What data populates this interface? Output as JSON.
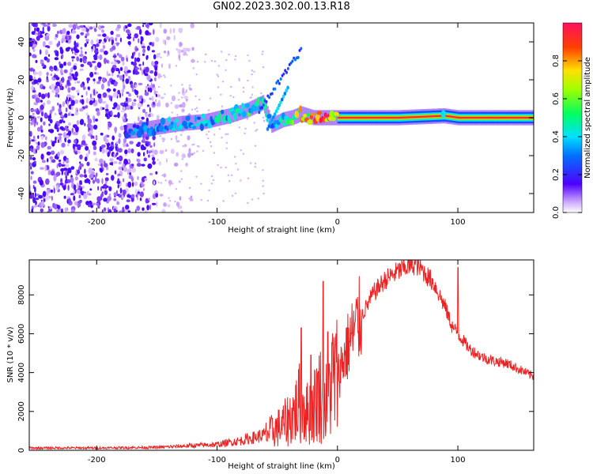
{
  "title": "GN02.2023.302.00.13.R18",
  "chart_data": [
    {
      "type": "heatmap",
      "xlabel": "Height of straight line (km)",
      "ylabel": "Frequency (Hz)",
      "xlim": [
        -256,
        163
      ],
      "ylim": [
        -50,
        50
      ],
      "xticks": [
        -200,
        -100,
        0,
        100
      ],
      "yticks": [
        -40,
        -20,
        0,
        20,
        40
      ],
      "grid": false,
      "colorbar": {
        "label": "Normalized spectral amplitude",
        "range": [
          0,
          1
        ],
        "ticks": [
          0.0,
          0.2,
          0.4,
          0.6,
          0.8
        ],
        "tick_labels": [
          "0.0",
          "0.2",
          "0.4",
          "0.6",
          "0.8"
        ],
        "colormap": [
          "#ffffff",
          "#b46cff",
          "#4b00ff",
          "#0040ff",
          "#00e0ff",
          "#00ff40",
          "#a0ff00",
          "#ffe000",
          "#ff4000",
          "#ff1060"
        ]
      },
      "ridge": {
        "x": [
          -170,
          -150,
          -130,
          -110,
          -90,
          -75,
          -62,
          -55,
          -45,
          -38,
          -30,
          -20,
          -10,
          0,
          50,
          88,
          100,
          163
        ],
        "y": [
          -7,
          -5,
          -3,
          -2,
          1,
          4,
          8,
          -4,
          -1,
          0,
          2,
          0,
          0,
          0,
          0,
          1,
          0,
          0
        ],
        "amplitude": [
          0.3,
          0.35,
          0.38,
          0.4,
          0.45,
          0.5,
          0.45,
          0.35,
          0.45,
          0.55,
          0.7,
          0.85,
          0.9,
          0.95,
          0.95,
          0.85,
          0.95,
          0.95
        ]
      },
      "noise_region_x": [
        -256,
        -150
      ]
    },
    {
      "type": "line",
      "xlabel": "Height of straight line (km)",
      "ylabel": "SNR (10 * v/v)",
      "xlim": [
        -256,
        163
      ],
      "ylim": [
        0,
        9800
      ],
      "xticks": [
        -200,
        -100,
        0,
        100
      ],
      "yticks": [
        0,
        2000,
        4000,
        6000,
        8000
      ],
      "grid": false,
      "color": "#ee2222",
      "x": [
        -256,
        -200,
        -150,
        -100,
        -80,
        -60,
        -45,
        -35,
        -30,
        -25,
        -20,
        -15,
        -10,
        -5,
        0,
        10,
        20,
        30,
        40,
        50,
        60,
        65,
        70,
        80,
        90,
        95,
        100,
        110,
        120,
        130,
        140,
        150,
        163
      ],
      "y": [
        120,
        120,
        150,
        300,
        500,
        800,
        1300,
        2000,
        2600,
        1900,
        2200,
        3000,
        2300,
        3600,
        3800,
        5600,
        6900,
        8100,
        8800,
        9200,
        9500,
        9600,
        9300,
        8600,
        7300,
        6400,
        6000,
        5200,
        4800,
        4600,
        4500,
        4200,
        3800
      ],
      "spikes": [
        {
          "x": -30,
          "y": 6300
        },
        {
          "x": -22,
          "y": 4900
        },
        {
          "x": -12,
          "y": 8700
        },
        {
          "x": -8,
          "y": 6100
        },
        {
          "x": 100,
          "y": 9400
        }
      ]
    }
  ]
}
